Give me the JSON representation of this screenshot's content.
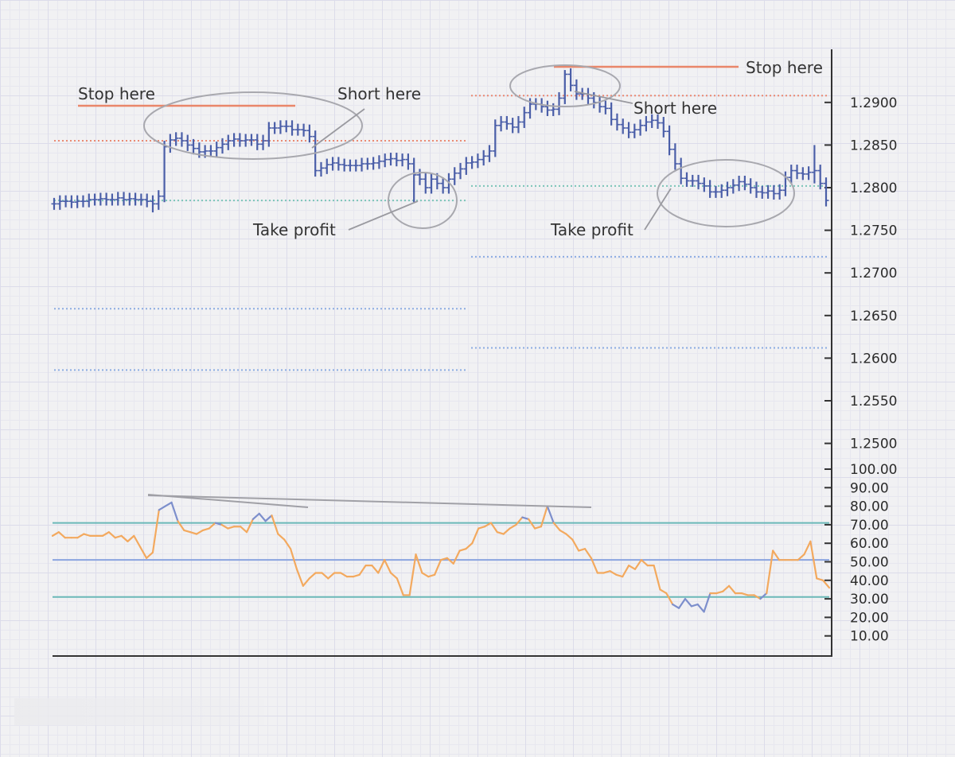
{
  "chart_data": [
    {
      "type": "line",
      "subtype": "ohlc-bars",
      "title": "",
      "xlabel": "",
      "ylabel": "",
      "ylim": [
        1.245,
        1.295
      ],
      "y_ticks": [
        "1.2900",
        "1.2850",
        "1.2800",
        "1.2750",
        "1.2700",
        "1.2650",
        "1.2600",
        "1.2550",
        "1.2500"
      ],
      "tick_values": [
        1.29,
        1.285,
        1.28,
        1.275,
        1.27,
        1.265,
        1.26,
        1.255,
        1.25
      ],
      "grid": true,
      "colors": {
        "bars": "#4a5ea8",
        "stop": "#e9866a",
        "ellipse": "#a8a8ae",
        "pointer": "#9a9aa0"
      },
      "series": [
        {
          "values": [
            1.2781,
            1.2784,
            1.2784,
            1.2783,
            1.2784,
            1.2784,
            1.2786,
            1.2786,
            1.2787,
            1.2786,
            1.2786,
            1.2788,
            1.2786,
            1.2787,
            1.2786,
            1.2786,
            1.2784,
            1.2781,
            1.279,
            1.2848,
            1.2856,
            1.2858,
            1.2855,
            1.285,
            1.2846,
            1.2842,
            1.2843,
            1.2843,
            1.2847,
            1.2851,
            1.2855,
            1.2857,
            1.2855,
            1.2856,
            1.2856,
            1.2851,
            1.2855,
            1.287,
            1.287,
            1.2872,
            1.2872,
            1.2868,
            1.2868,
            1.2867,
            1.286,
            1.282,
            1.2823,
            1.2827,
            1.2829,
            1.2827,
            1.2826,
            1.2826,
            1.2826,
            1.2828,
            1.2828,
            1.2829,
            1.2831,
            1.2833,
            1.2834,
            1.2832,
            1.2833,
            1.2828,
            1.2815,
            1.281,
            1.28,
            1.281,
            1.2805,
            1.28,
            1.281,
            1.2817,
            1.2822,
            1.2829,
            1.283,
            1.2833,
            1.2837,
            1.2843,
            1.2873,
            1.2877,
            1.2875,
            1.2871,
            1.2877,
            1.2888,
            1.2898,
            1.2898,
            1.2895,
            1.2891,
            1.2892,
            1.2905,
            1.2933,
            1.292,
            1.291,
            1.291,
            1.2905,
            1.29,
            1.2895,
            1.2893,
            1.288,
            1.2874,
            1.287,
            1.2865,
            1.2868,
            1.2873,
            1.2877,
            1.2879,
            1.2876,
            1.2866,
            1.2845,
            1.2828,
            1.2811,
            1.2808,
            1.2808,
            1.2805,
            1.2802,
            1.2795,
            1.2795,
            1.2797,
            1.28,
            1.2803,
            1.2807,
            1.2804,
            1.28,
            1.2795,
            1.2794,
            1.2796,
            1.2793,
            1.2797,
            1.2812,
            1.282,
            1.2817,
            1.2816,
            1.2818,
            1.282,
            1.2805,
            1.2785
          ]
        }
      ],
      "levels": {
        "red_dotted_left": 1.2855,
        "green_dotted_left": 1.2785,
        "blue_dotted_left": [
          1.2658,
          1.2586
        ],
        "red_dotted_right": 1.2908,
        "green_dotted_right": 1.2802,
        "blue_dotted_right": [
          1.2719,
          1.2612
        ]
      },
      "annotations": [
        {
          "label": "Stop here"
        },
        {
          "label": "Short here"
        },
        {
          "label": "Take profit"
        },
        {
          "label": "Stop here"
        },
        {
          "label": "Short here"
        },
        {
          "label": "Take profit"
        }
      ]
    },
    {
      "type": "line",
      "title": "",
      "xlabel": "",
      "ylabel": "",
      "ylim": [
        0,
        105
      ],
      "y_ticks": [
        "100.00",
        "90.00",
        "80.00",
        "70.00",
        "60.00",
        "50.00",
        "40.00",
        "30.00",
        "20.00",
        "10.00"
      ],
      "tick_values": [
        100,
        90,
        80,
        70,
        60,
        50,
        40,
        30,
        20,
        10
      ],
      "levels": {
        "upper": 71,
        "middle": 51,
        "lower": 31
      },
      "colors": {
        "line": "#f3a95e",
        "extreme": "#7d8fcc",
        "upper_lower": "#6ab8b8",
        "middle": "#8aa4e0",
        "divergence": "#a0a0a6"
      },
      "series": [
        {
          "values": [
            64,
            66,
            63,
            63,
            63,
            65,
            64,
            64,
            64,
            66,
            63,
            64,
            61,
            64,
            58,
            52,
            55,
            78,
            80,
            82,
            72,
            67,
            66,
            65,
            67,
            68,
            71,
            70,
            68,
            69,
            69,
            66,
            73,
            76,
            72,
            75,
            65,
            62,
            57,
            46,
            37,
            41,
            44,
            44,
            41,
            44,
            44,
            42,
            42,
            43,
            48,
            48,
            44,
            51,
            44,
            41,
            32,
            32,
            54,
            44,
            42,
            43,
            51,
            52,
            49,
            56,
            57,
            60,
            68,
            69,
            71,
            66,
            65,
            68,
            70,
            74,
            73,
            68,
            69,
            80,
            71,
            67,
            65,
            62,
            56,
            57,
            52,
            44,
            44,
            45,
            43,
            42,
            48,
            46,
            51,
            48,
            48,
            35,
            33,
            27,
            25,
            30,
            26,
            27,
            23,
            33,
            33,
            34,
            37,
            33,
            33,
            32,
            32,
            30,
            33,
            56,
            51,
            51,
            51,
            51,
            54,
            61,
            41,
            40,
            36
          ]
        }
      ],
      "divergence_lines": 2
    }
  ]
}
